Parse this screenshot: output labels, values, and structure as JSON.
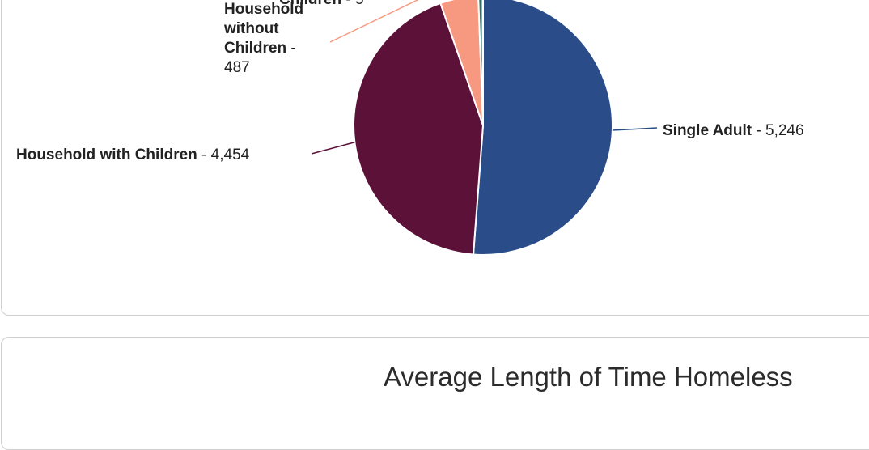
{
  "chart_data": {
    "type": "pie",
    "slices": [
      {
        "label": "Single Adult",
        "value": 5246,
        "display": "5,246",
        "color": "#2a4c88"
      },
      {
        "label": "Household with Children",
        "value": 4454,
        "display": "4,454",
        "color": "#5c1138"
      },
      {
        "label": "Household without Children",
        "value": 487,
        "display": "487",
        "color": "#f79880"
      },
      {
        "label": "Children",
        "value": 5,
        "display": "5",
        "color": "#1a6f63"
      },
      {
        "label": "",
        "value": 55,
        "display": "",
        "color": "#2b6e66"
      }
    ]
  },
  "second_card": {
    "title": "Average Length of Time Homeless"
  }
}
